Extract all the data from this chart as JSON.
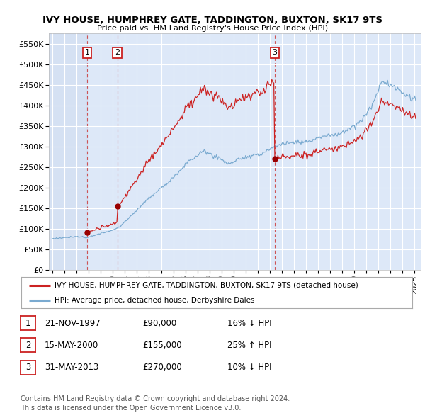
{
  "title": "IVY HOUSE, HUMPHREY GATE, TADDINGTON, BUXTON, SK17 9TS",
  "subtitle": "Price paid vs. HM Land Registry's House Price Index (HPI)",
  "ylim": [
    0,
    575000
  ],
  "yticks": [
    0,
    50000,
    100000,
    150000,
    200000,
    250000,
    300000,
    350000,
    400000,
    450000,
    500000,
    550000
  ],
  "ytick_labels": [
    "£0",
    "£50K",
    "£100K",
    "£150K",
    "£200K",
    "£250K",
    "£300K",
    "£350K",
    "£400K",
    "£450K",
    "£500K",
    "£550K"
  ],
  "xlim_start": 1994.7,
  "xlim_end": 2025.5,
  "background_color": "#dde8f8",
  "grid_color": "#ffffff",
  "transactions": [
    {
      "num": 1,
      "date": "21-NOV-1997",
      "price": 90000,
      "year": 1997.88,
      "pct": "16%",
      "dir": "↓"
    },
    {
      "num": 2,
      "date": "15-MAY-2000",
      "price": 155000,
      "year": 2000.37,
      "pct": "25%",
      "dir": "↑"
    },
    {
      "num": 3,
      "date": "31-MAY-2013",
      "price": 270000,
      "year": 2013.41,
      "pct": "10%",
      "dir": "↓"
    }
  ],
  "red_line_color": "#cc2222",
  "blue_line_color": "#7aaad0",
  "dashed_line_color": "#cc4444",
  "legend_label_red": "IVY HOUSE, HUMPHREY GATE, TADDINGTON, BUXTON, SK17 9TS (detached house)",
  "legend_label_blue": "HPI: Average price, detached house, Derbyshire Dales",
  "footer1": "Contains HM Land Registry data © Crown copyright and database right 2024.",
  "footer2": "This data is licensed under the Open Government Licence v3.0."
}
